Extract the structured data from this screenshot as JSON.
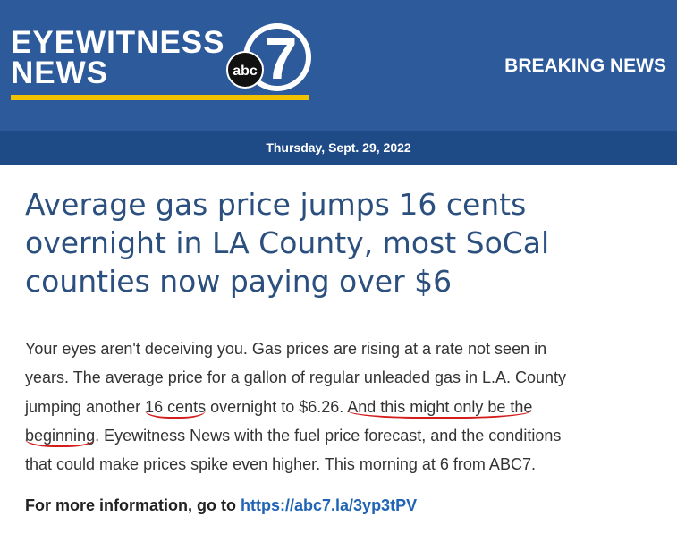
{
  "header": {
    "brand_line_1": "EYEWITNESS",
    "brand_line_2": "NEWS",
    "logo_abc": "abc",
    "logo_seven": "7",
    "banner": "BREAKING NEWS",
    "date": "Thursday, Sept. 29, 2022"
  },
  "article": {
    "title": "Average gas price jumps 16 cents overnight in LA County, most SoCal counties now paying over $6",
    "body_lines": [
      [
        "Your eyes aren't deceiving you. Gas prices are rising at a rate not seen in"
      ],
      [
        "years. The average price for a gallon of regular unleaded gas in L.A. County"
      ],
      [
        "jumping another ",
        "16 cents",
        " overnight to $6.26. ",
        "And this might only be the"
      ],
      [
        "beginning",
        ". Eyewitness News with the fuel price forecast, and the conditions"
      ],
      [
        "that could make prices spike even higher. This morning at 6 from ABC7."
      ]
    ],
    "more_info": "For more information, go to",
    "link": "https://abc7.la/3yp3tPV"
  }
}
